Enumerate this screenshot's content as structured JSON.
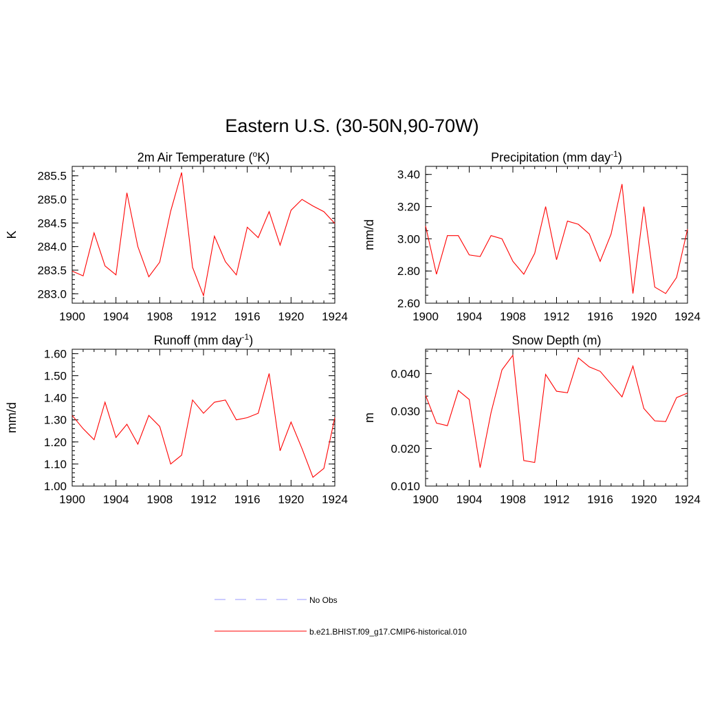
{
  "title": "Eastern U.S. (30-50N,90-70W)",
  "colors": {
    "model_line": "#ff0000",
    "obs_line": "#9999ff",
    "axis": "#000000"
  },
  "legend": {
    "items": [
      {
        "label": "No Obs",
        "style": "dashed",
        "color": "#9999ff"
      },
      {
        "label": "b.e21.BHIST.f09_g17.CMIP6-historical.010",
        "style": "solid",
        "color": "#ff0000"
      }
    ]
  },
  "chart_data": [
    {
      "type": "line",
      "title": "2m Air Temperature",
      "title_suffix": "K)",
      "title_sup": "o",
      "title_prefix": "2m Air Temperature (",
      "ylabel": "K",
      "xlim": [
        1900,
        1924
      ],
      "ylim": [
        282.8,
        285.7
      ],
      "xticks": [
        1900,
        1904,
        1908,
        1912,
        1916,
        1920,
        1924
      ],
      "yticks": [
        "283.0",
        "283.5",
        "284.0",
        "284.5",
        "285.0",
        "285.5"
      ],
      "yminor": 0.1,
      "x": [
        1900,
        1901,
        1902,
        1903,
        1904,
        1905,
        1906,
        1907,
        1908,
        1909,
        1910,
        1911,
        1912,
        1913,
        1914,
        1915,
        1916,
        1917,
        1918,
        1919,
        1920,
        1921,
        1922,
        1923,
        1924
      ],
      "series": [
        {
          "values": [
            283.48,
            283.38,
            284.29,
            283.59,
            283.4,
            285.14,
            284.0,
            283.36,
            283.67,
            284.75,
            285.57,
            283.56,
            282.96,
            284.22,
            283.68,
            283.4,
            284.41,
            284.19,
            284.74,
            284.03,
            284.77,
            285.0,
            284.86,
            284.74,
            284.49
          ]
        }
      ]
    },
    {
      "type": "line",
      "title_prefix": "Precipitation (mm day",
      "title_sup": "-1",
      "title_suffix": ")",
      "ylabel": "mm/d",
      "xlim": [
        1900,
        1924
      ],
      "ylim": [
        2.6,
        3.45
      ],
      "xticks": [
        1900,
        1904,
        1908,
        1912,
        1916,
        1920,
        1924
      ],
      "yticks": [
        "2.60",
        "2.80",
        "3.00",
        "3.20",
        "3.40"
      ],
      "yminor": 0.05,
      "x": [
        1900,
        1901,
        1902,
        1903,
        1904,
        1905,
        1906,
        1907,
        1908,
        1909,
        1910,
        1911,
        1912,
        1913,
        1914,
        1915,
        1916,
        1917,
        1918,
        1919,
        1920,
        1921,
        1922,
        1923,
        1924
      ],
      "series": [
        {
          "values": [
            3.08,
            2.78,
            3.02,
            3.02,
            2.9,
            2.89,
            3.02,
            3.0,
            2.86,
            2.78,
            2.91,
            3.2,
            2.87,
            3.11,
            3.09,
            3.03,
            2.86,
            3.03,
            3.34,
            2.66,
            3.2,
            2.7,
            2.66,
            2.76,
            3.06
          ]
        }
      ]
    },
    {
      "type": "line",
      "title_prefix": "Runoff (mm day",
      "title_sup": "-1",
      "title_suffix": ")",
      "ylabel": "mm/d",
      "xlim": [
        1900,
        1924
      ],
      "ylim": [
        1.0,
        1.62
      ],
      "xticks": [
        1900,
        1904,
        1908,
        1912,
        1916,
        1920,
        1924
      ],
      "yticks": [
        "1.00",
        "1.10",
        "1.20",
        "1.30",
        "1.40",
        "1.50",
        "1.60"
      ],
      "yminor": 0.02,
      "x": [
        1900,
        1901,
        1902,
        1903,
        1904,
        1905,
        1906,
        1907,
        1908,
        1909,
        1910,
        1911,
        1912,
        1913,
        1914,
        1915,
        1916,
        1917,
        1918,
        1919,
        1920,
        1921,
        1922,
        1923,
        1924
      ],
      "series": [
        {
          "values": [
            1.32,
            1.26,
            1.21,
            1.38,
            1.22,
            1.28,
            1.19,
            1.32,
            1.27,
            1.1,
            1.14,
            1.39,
            1.33,
            1.38,
            1.39,
            1.3,
            1.31,
            1.33,
            1.51,
            1.16,
            1.29,
            1.17,
            1.04,
            1.08,
            1.31
          ]
        }
      ]
    },
    {
      "type": "line",
      "title_prefix": "Snow Depth (m)",
      "title_sup": "",
      "title_suffix": "",
      "ylabel": "m",
      "xlim": [
        1900,
        1924
      ],
      "ylim": [
        0.01,
        0.0465
      ],
      "xticks": [
        1900,
        1904,
        1908,
        1912,
        1916,
        1920,
        1924
      ],
      "yticks": [
        "0.010",
        "0.020",
        "0.030",
        "0.040"
      ],
      "yminor": 0.002,
      "x": [
        1900,
        1901,
        1902,
        1903,
        1904,
        1905,
        1906,
        1907,
        1908,
        1909,
        1910,
        1911,
        1912,
        1913,
        1914,
        1915,
        1916,
        1917,
        1918,
        1919,
        1920,
        1921,
        1922,
        1923,
        1924
      ],
      "series": [
        {
          "values": [
            0.0342,
            0.0268,
            0.0261,
            0.0355,
            0.0331,
            0.0149,
            0.0296,
            0.041,
            0.0449,
            0.0168,
            0.0163,
            0.0398,
            0.0353,
            0.0349,
            0.0442,
            0.0418,
            0.0406,
            0.0372,
            0.0338,
            0.042,
            0.0307,
            0.0274,
            0.0272,
            0.0336,
            0.0348
          ]
        }
      ]
    }
  ]
}
